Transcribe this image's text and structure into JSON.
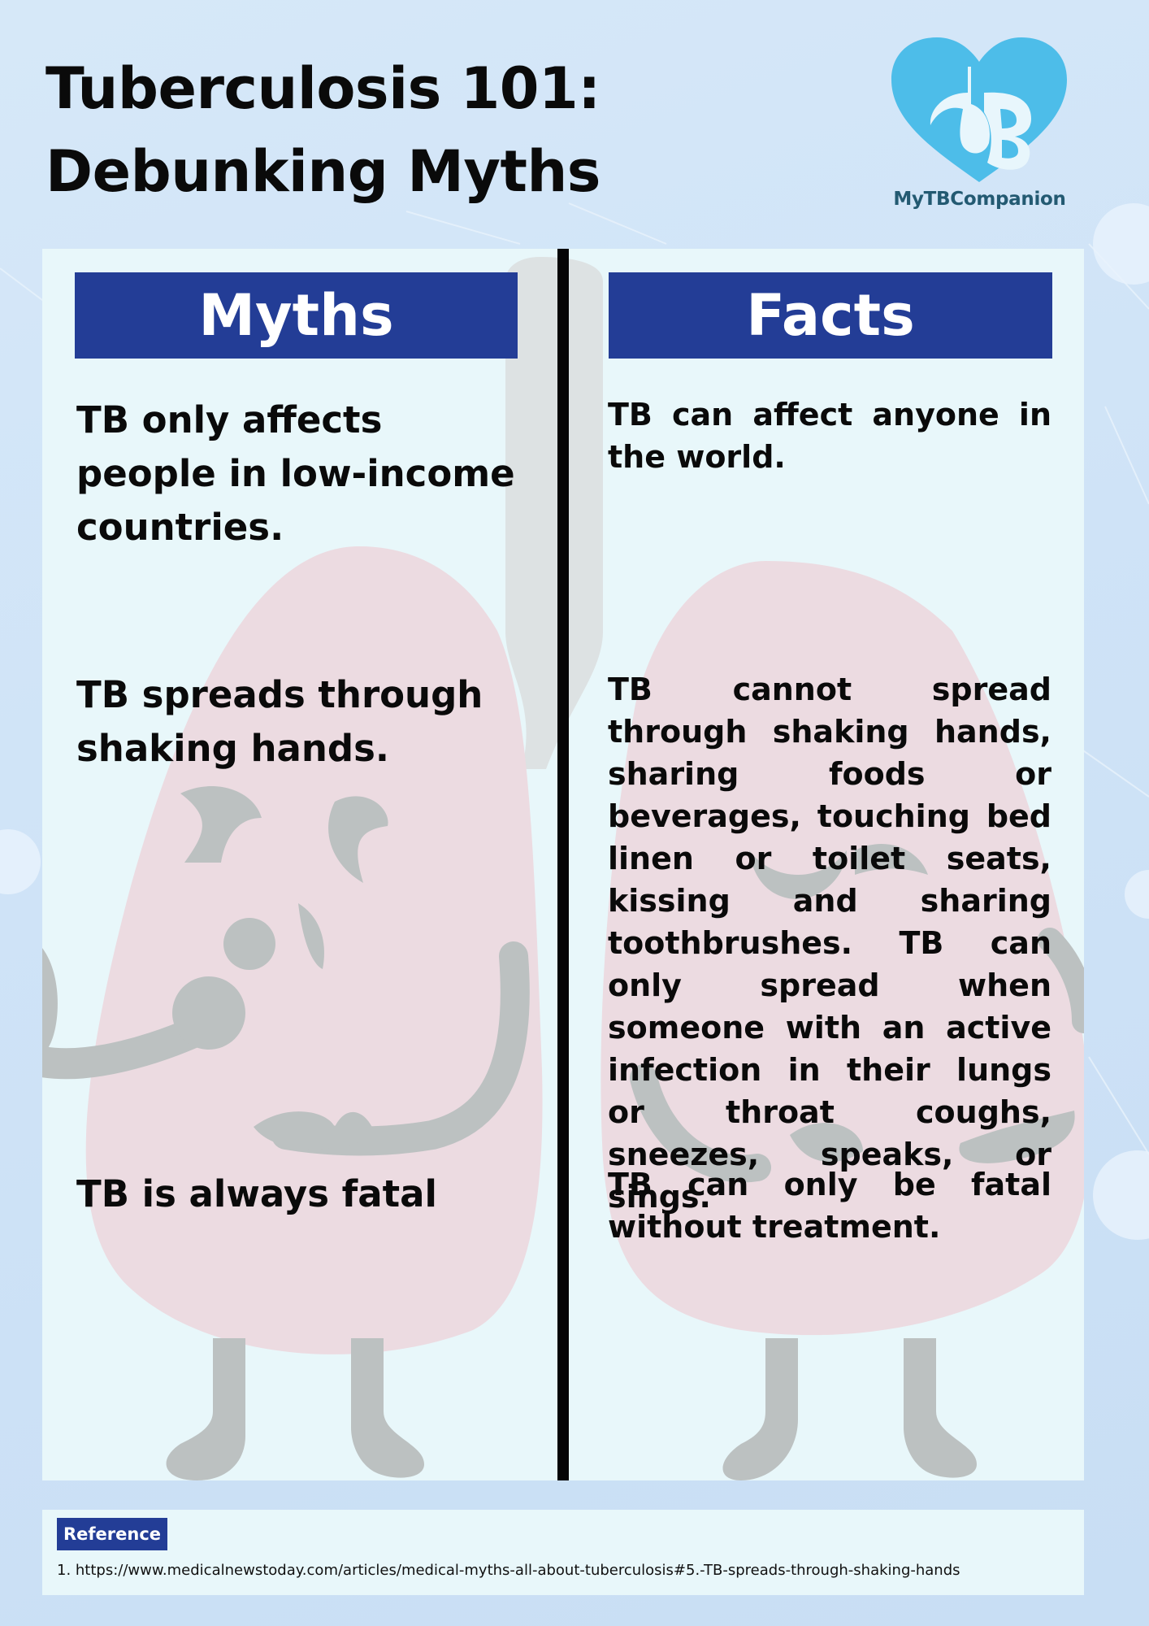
{
  "header": {
    "title_line1": "Tuberculosis 101:",
    "title_line2": "Debunking Myths"
  },
  "logo": {
    "text": "MyTBCompanion",
    "icon": "heart-lungs-tb-logo",
    "color": "#4dbde9"
  },
  "columns": {
    "myths_label": "Myths",
    "facts_label": "Facts"
  },
  "items": [
    {
      "myth": "TB only affects people in low-income countries.",
      "fact": "TB can affect anyone in the world."
    },
    {
      "myth": "TB spreads through shaking hands.",
      "fact": "TB cannot spread through shaking hands, sharing foods or beverages, touching bed linen or toilet seats, kissing and sharing toothbrushes. TB can only spread when someone with an active infection in their lungs or throat coughs, sneezes, speaks, or sings."
    },
    {
      "myth": "TB is always fatal",
      "fact": "TB can only be fatal without treatment."
    }
  ],
  "reference": {
    "label": "Reference",
    "items": [
      "1. https://www.medicalnewstoday.com/articles/medical-myths-all-about-tuberculosis#5.-TB-spreads-through-shaking-hands"
    ]
  },
  "colors": {
    "header_blue": "#233d96",
    "panel_bg": "#e8f7fa",
    "lung_pink": "#ecdbe1",
    "character_gray": "#bcc1c1"
  }
}
